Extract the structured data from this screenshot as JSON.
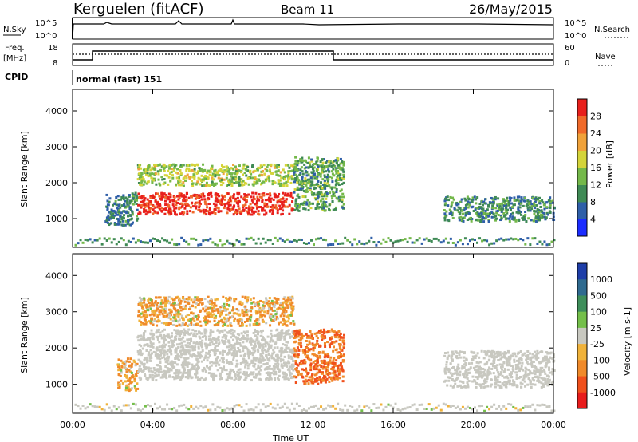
{
  "header": {
    "station": "Kerguelen (fitACF)",
    "beam": "Beam 11",
    "date": "26/May/2015"
  },
  "status_panels": {
    "nsky_label": "N.Sky",
    "nsearch_label": "N.Search",
    "exp_ticks": [
      "10^5",
      "10^0"
    ],
    "freq_label": "Freq.",
    "freq_unit": "[MHz]",
    "freq_ticks": [
      18,
      8
    ],
    "nave_label": "Nave",
    "nave_ticks": [
      60,
      0
    ],
    "cpid_label": "CPID",
    "cpid_value": "normal (fast) 151"
  },
  "time_axis": {
    "label": "Time UT",
    "ticks": [
      "00:00",
      "04:00",
      "08:00",
      "12:00",
      "16:00",
      "20:00",
      "00:00"
    ]
  },
  "power_colorbar": {
    "label": "Power [dB]",
    "ticks": [
      4,
      8,
      12,
      16,
      20,
      24,
      28
    ],
    "colors": [
      "#1b2cff",
      "#2f5fa8",
      "#3f8a55",
      "#74b84a",
      "#d4d43a",
      "#f0a23a",
      "#f06a2a",
      "#e8201c"
    ]
  },
  "velocity_colorbar": {
    "label": "Velocity [m s-1]",
    "ticks": [
      1000,
      500,
      100,
      25,
      -25,
      -100,
      -500,
      -1000
    ],
    "colors": [
      "#1e3ea8",
      "#2f6a8f",
      "#3e8e5a",
      "#74bf4a",
      "#c8c8c0",
      "#f0b23a",
      "#f08a2a",
      "#f0501c",
      "#e81c1c"
    ]
  },
  "chart_data": [
    {
      "type": "heatmap",
      "title": "Power",
      "ylabel": "Slant Range [km]",
      "xlabel": "Time UT",
      "xlim": [
        0,
        24
      ],
      "ylim": [
        200,
        4600
      ],
      "y_ticks": [
        1000,
        2000,
        3000,
        4000
      ],
      "scatter_regions": [
        {
          "t": [
            1.6,
            3.2
          ],
          "r": [
            800,
            1700
          ],
          "level": 6
        },
        {
          "t": [
            3.2,
            11.0
          ],
          "r": [
            1100,
            1700
          ],
          "level": 28
        },
        {
          "t": [
            3.2,
            11.0
          ],
          "r": [
            1900,
            2500
          ],
          "level": 14
        },
        {
          "t": [
            11.0,
            13.5
          ],
          "r": [
            1200,
            2700
          ],
          "level": 10
        },
        {
          "t": [
            18.5,
            24.0
          ],
          "r": [
            900,
            1600
          ],
          "level": 8
        }
      ]
    },
    {
      "type": "heatmap",
      "title": "Velocity",
      "ylabel": "Slant Range [km]",
      "xlabel": "Time UT",
      "xlim": [
        0,
        24
      ],
      "ylim": [
        200,
        4600
      ],
      "y_ticks": [
        1000,
        2000,
        3000,
        4000
      ],
      "scatter_regions": [
        {
          "t": [
            2.2,
            3.2
          ],
          "r": [
            800,
            1700
          ],
          "level": -100
        },
        {
          "t": [
            3.2,
            11.0
          ],
          "r": [
            1100,
            2500
          ],
          "level": 0
        },
        {
          "t": [
            3.2,
            11.0
          ],
          "r": [
            2600,
            3400
          ],
          "level": -100
        },
        {
          "t": [
            11.0,
            13.5
          ],
          "r": [
            1000,
            2500
          ],
          "level": -500
        },
        {
          "t": [
            18.5,
            24.0
          ],
          "r": [
            900,
            1900
          ],
          "level": 0
        }
      ]
    }
  ]
}
